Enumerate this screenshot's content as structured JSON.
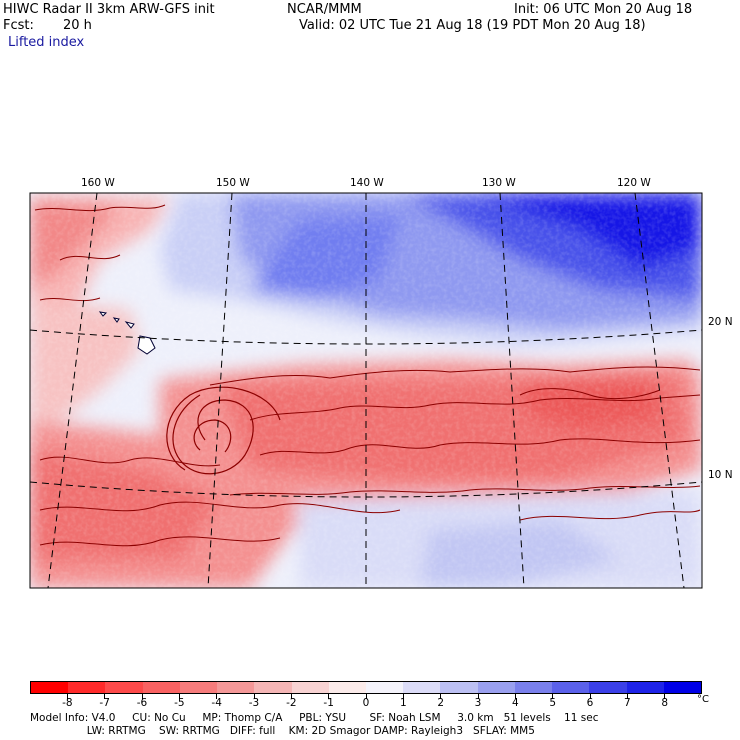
{
  "header": {
    "title": "HIWC Radar II 3km ARW-GFS init",
    "source": "NCAR/MMM",
    "init": "Init: 06 UTC Mon 20 Aug 18",
    "fcst_label": "Fcst:",
    "fcst_value": "20 h",
    "valid": "Valid: 02 UTC Tue 21 Aug 18 (19 PDT Mon 20 Aug 18)",
    "field": "Lifted index"
  },
  "map": {
    "lon_labels": [
      "160 W",
      "150 W",
      "140 W",
      "130 W",
      "120 W"
    ],
    "lat_labels": [
      "20 N",
      "10 N"
    ],
    "colors": {
      "deep_blue": "#1515e6",
      "mid_blue": "#6f7df0",
      "light_blue": "#c9cff6",
      "near_white": "#f3f1f6",
      "light_red": "#f8b3b3",
      "mid_red": "#f07070",
      "contour": "#8b0000"
    }
  },
  "colorbar": {
    "labels": [
      "-8",
      "-7",
      "-6",
      "-5",
      "-4",
      "-3",
      "-2",
      "-1",
      "0",
      "1",
      "2",
      "3",
      "4",
      "5",
      "6",
      "7",
      "8"
    ],
    "unit": "°C",
    "colors": [
      "#ff0000",
      "#ff2a2a",
      "#fd4a4a",
      "#f96262",
      "#f67c7c",
      "#f49898",
      "#f5b6b6",
      "#f8d3d3",
      "#fbebea",
      "#f4f3fb",
      "#dcdcf8",
      "#bcc0f3",
      "#9aa0ef",
      "#7a80ec",
      "#5b61ea",
      "#3b40e8",
      "#1e23e8",
      "#0000e6"
    ]
  },
  "footer": {
    "line1": "Model Info: V4.0     CU: No Cu     MP: Thomp C/A     PBL: YSU       SF: Noah LSM     3.0 km   51 levels    11 sec",
    "line2": "                 LW: RRTMG    SW: RRTMG   DIFF: full    KM: 2D Smagor DAMP: Rayleigh3   SFLAY: MM5"
  }
}
